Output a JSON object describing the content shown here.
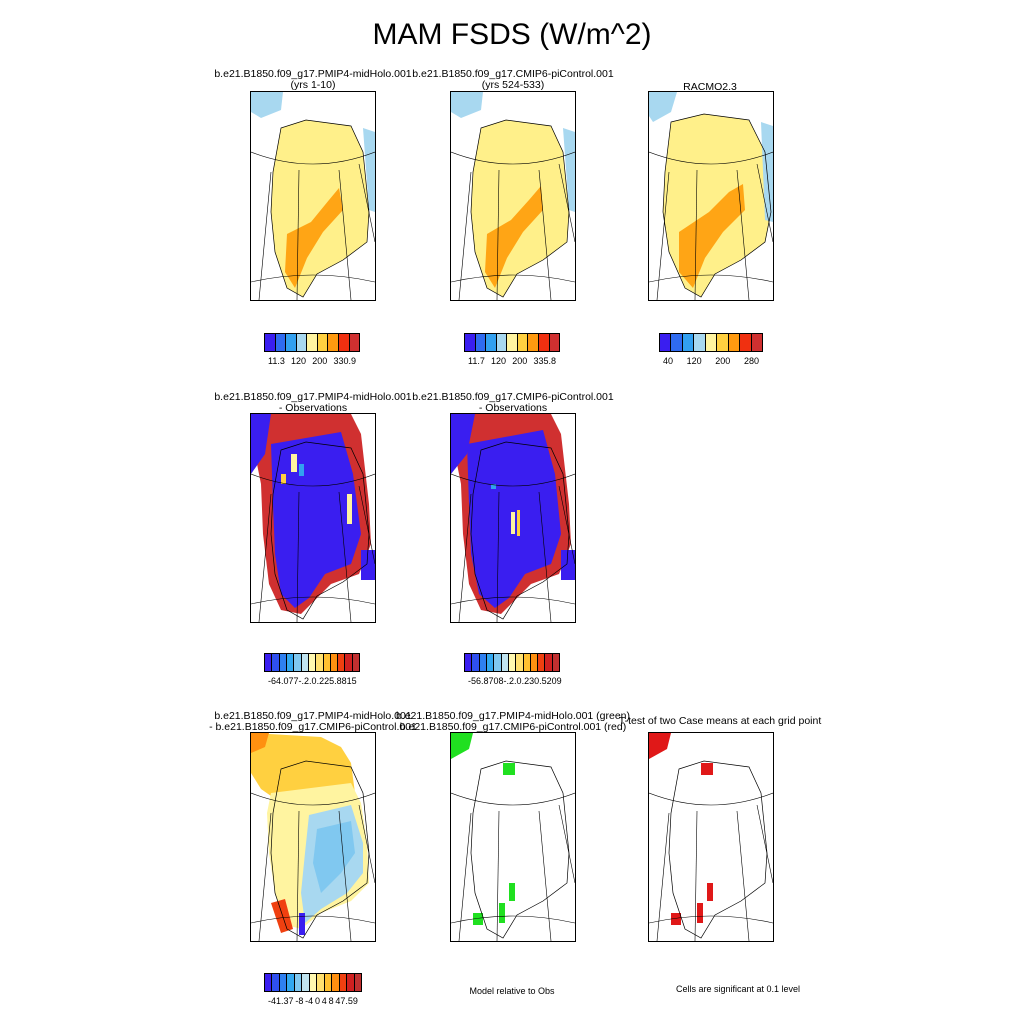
{
  "title": "MAM FSDS (W/m^2)",
  "panels": [
    {
      "top": "b.e21.B1850.f09_g17.PMIP4-midHolo.001",
      "sub": "(yrs 1-10)"
    },
    {
      "top": "b.e21.B1850.f09_g17.CMIP6-piControl.001",
      "sub": "(yrs 524-533)"
    },
    {
      "top": "RACMO2.3",
      "sub": ""
    },
    {
      "top": "b.e21.B1850.f09_g17.PMIP4-midHolo.001",
      "sub": "- Observations"
    },
    {
      "top": "b.e21.B1850.f09_g17.CMIP6-piControl.001",
      "sub": "- Observations"
    },
    {
      "top": "b.e21.B1850.f09_g17.PMIP4-midHolo.001",
      "sub": "- b.e21.B1850.f09_g17.CMIP6-piControl.001"
    },
    {
      "top": "b.e21.B1850.f09_g17.PMIP4-midHolo.001 (green)",
      "sub": "b.e21.B1850.f09_g17.CMIP6-piControl.001 (red)"
    },
    {
      "top": "T-test of two Case means at each grid point",
      "sub": ""
    }
  ],
  "colorbars": {
    "cb1": {
      "ticks": [
        "11.3",
        "120",
        "200",
        "330.9"
      ]
    },
    "cb2": {
      "ticks": [
        "11.7",
        "120",
        "200",
        "335.8"
      ]
    },
    "cb3": {
      "ticks": [
        "40",
        "120",
        "200",
        "280"
      ]
    },
    "cb4": {
      "ticks": [
        "-64.077",
        "-.2",
        ".0",
        ".2",
        "25.8815"
      ]
    },
    "cb5": {
      "ticks": [
        "-56.8708",
        "-.2",
        ".0",
        ".2",
        "30.5209"
      ]
    },
    "cb6": {
      "ticks": [
        "-41.37",
        "-8",
        "-4",
        "0",
        "4",
        "8",
        "47.59"
      ]
    }
  },
  "captions": {
    "model_relative": "Model relative to Obs",
    "significance": "Cells are significant at 0.1 level"
  },
  "palettes": {
    "abs": [
      "#3a1ef0",
      "#2f6bf0",
      "#32a0f0",
      "#a8d8f0",
      "#fff4a0",
      "#ffd040",
      "#ff9a10",
      "#f03010",
      "#d03030"
    ],
    "diff": [
      "#3a1ef0",
      "#2f50f0",
      "#2f80f0",
      "#32a8f0",
      "#80c8f0",
      "#c0e4f0",
      "#fff8b0",
      "#ffe070",
      "#ffc030",
      "#ff9010",
      "#f04010",
      "#d02020",
      "#c03030"
    ]
  }
}
